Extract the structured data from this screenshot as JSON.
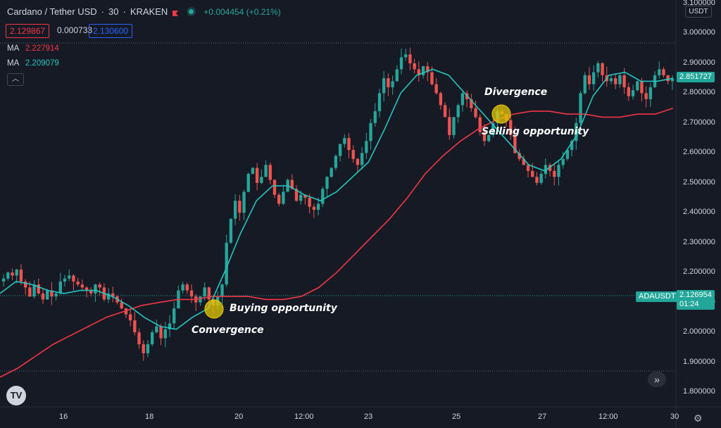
{
  "header": {
    "symbol": "Cardano / Tether USD",
    "interval": "30",
    "exchange": "KRAKEN",
    "change": "+0.004454 (+0.21%)",
    "bid": "2.129867",
    "spread": "0.000733",
    "ask": "2.130600",
    "flag_color": "#f23645",
    "live_color": "#26a69a"
  },
  "indicators": [
    {
      "label": "MA",
      "value": "2.227914",
      "color": "#f23645"
    },
    {
      "label": "MA",
      "value": "2.209079",
      "color": "#22c7c0"
    }
  ],
  "currency_label": "USDT",
  "price_tags": {
    "ma_fast": "2.851727",
    "symbol": "ADAUSDT",
    "last": "2.126954",
    "countdown": "01:24"
  },
  "annotations": {
    "divergence": "Divergence",
    "selling": "Selling opportunity",
    "buying": "Buying opportunity",
    "convergence": "Convergence"
  },
  "logo_text": "TV",
  "chart_data": {
    "type": "line",
    "title": "",
    "y_ticks": [
      "3.100000",
      "3.000000",
      "2.900000",
      "2.800000",
      "2.700000",
      "2.600000",
      "2.500000",
      "2.400000",
      "2.300000",
      "2.200000",
      "2.100000",
      "2.000000",
      "1.900000",
      "1.800000"
    ],
    "x_ticks": [
      "16",
      "18",
      "20",
      "12:00",
      "23",
      "25",
      "27",
      "12:00",
      "30"
    ],
    "ylim": [
      1.8,
      3.1
    ],
    "bars_index_range": [
      0,
      160
    ],
    "price_close": [
      2.18,
      2.2,
      2.19,
      2.21,
      2.17,
      2.15,
      2.12,
      2.16,
      2.13,
      2.11,
      2.14,
      2.12,
      2.13,
      2.17,
      2.18,
      2.19,
      2.17,
      2.16,
      2.15,
      2.14,
      2.13,
      2.16,
      2.15,
      2.11,
      2.13,
      2.12,
      2.1,
      2.08,
      2.06,
      2.04,
      2.0,
      1.96,
      1.93,
      1.96,
      2.0,
      2.02,
      1.98,
      2.01,
      2.03,
      2.08,
      2.14,
      2.16,
      2.14,
      2.12,
      2.1,
      2.12,
      2.15,
      2.11,
      2.09,
      2.12,
      2.16,
      2.3,
      2.38,
      2.44,
      2.4,
      2.47,
      2.53,
      2.55,
      2.5,
      2.52,
      2.56,
      2.51,
      2.46,
      2.43,
      2.47,
      2.51,
      2.48,
      2.44,
      2.46,
      2.45,
      2.42,
      2.41,
      2.43,
      2.48,
      2.52,
      2.55,
      2.59,
      2.63,
      2.65,
      2.61,
      2.58,
      2.56,
      2.6,
      2.64,
      2.7,
      2.74,
      2.8,
      2.85,
      2.82,
      2.84,
      2.88,
      2.92,
      2.93,
      2.9,
      2.88,
      2.86,
      2.89,
      2.87,
      2.83,
      2.8,
      2.76,
      2.72,
      2.66,
      2.72,
      2.76,
      2.8,
      2.78,
      2.75,
      2.72,
      2.67,
      2.64,
      2.66,
      2.7,
      2.74,
      2.73,
      2.71,
      2.66,
      2.6,
      2.58,
      2.56,
      2.54,
      2.52,
      2.5,
      2.53,
      2.56,
      2.54,
      2.52,
      2.56,
      2.58,
      2.61,
      2.64,
      2.7,
      2.8,
      2.86,
      2.83,
      2.87,
      2.9,
      2.86,
      2.84,
      2.85,
      2.83,
      2.86,
      2.82,
      2.79,
      2.81,
      2.84,
      2.8,
      2.78,
      2.82,
      2.86,
      2.88,
      2.86,
      2.84,
      2.85
    ],
    "series": [
      {
        "name": "MA",
        "color": "#f23645",
        "values": [
          1.85,
          1.88,
          1.92,
          1.96,
          1.99,
          2.02,
          2.05,
          2.07,
          2.09,
          2.1,
          2.11,
          2.11,
          2.12,
          2.12,
          2.12,
          2.11,
          2.11,
          2.12,
          2.15,
          2.2,
          2.26,
          2.32,
          2.38,
          2.45,
          2.53,
          2.59,
          2.64,
          2.68,
          2.71,
          2.73,
          2.74,
          2.74,
          2.73,
          2.73,
          2.72,
          2.72,
          2.73,
          2.73,
          2.75
        ]
      },
      {
        "name": "MA",
        "color": "#22c7c0",
        "values": [
          2.13,
          2.17,
          2.16,
          2.14,
          2.13,
          2.14,
          2.14,
          2.12,
          2.09,
          2.05,
          2.02,
          2.01,
          2.05,
          2.08,
          2.2,
          2.33,
          2.44,
          2.49,
          2.49,
          2.46,
          2.44,
          2.47,
          2.52,
          2.57,
          2.68,
          2.8,
          2.86,
          2.88,
          2.86,
          2.8,
          2.74,
          2.68,
          2.62,
          2.56,
          2.54,
          2.58,
          2.66,
          2.79,
          2.86,
          2.87,
          2.84,
          2.84,
          2.85
        ]
      }
    ],
    "grid": false
  }
}
